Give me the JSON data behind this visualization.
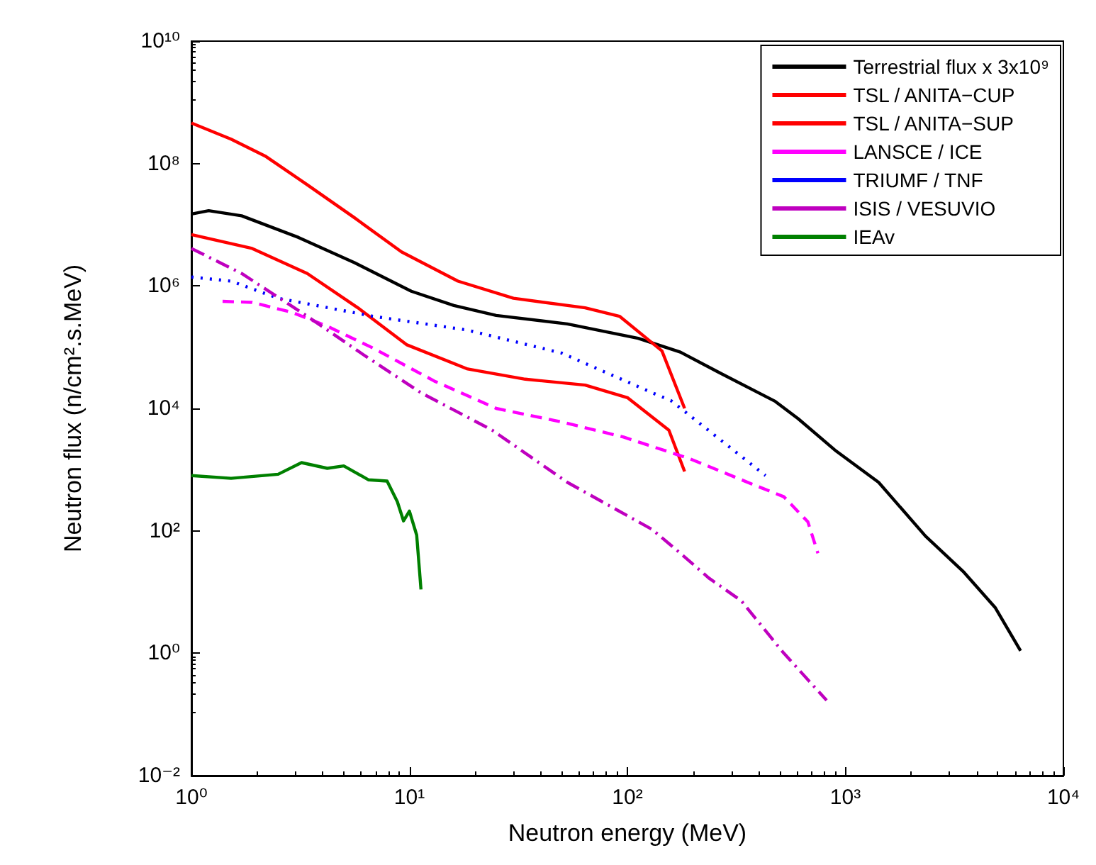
{
  "chart_data": {
    "type": "line",
    "xlabel": "Neutron energy (MeV)",
    "ylabel": "Neutron flux (n/cm².s.MeV)",
    "log": "xy",
    "grid": false,
    "legend": "top right",
    "marker": "none",
    "xlim": [
      1,
      10000
    ],
    "xticks": [
      {
        "value": 1,
        "label": "10⁰"
      },
      {
        "value": 10,
        "label": "10¹"
      },
      {
        "value": 100,
        "label": "10²"
      },
      {
        "value": 1000,
        "label": "10³"
      },
      {
        "value": 10000,
        "label": "10⁴"
      }
    ],
    "ylim": [
      0.01,
      10000000000
    ],
    "yticks": [
      {
        "value": 0.01,
        "label": "10⁻²"
      },
      {
        "value": 1,
        "label": "10⁰"
      },
      {
        "value": 100,
        "label": "10²"
      },
      {
        "value": 10000,
        "label": "10⁴"
      },
      {
        "value": 1000000,
        "label": "10⁶"
      },
      {
        "value": 100000000,
        "label": "10⁸"
      },
      {
        "value": 10000000000,
        "label": "10¹⁰"
      }
    ],
    "series": [
      {
        "name": "Terrestrial flux x 3x10⁹",
        "color": "#000000",
        "line_style": "solid",
        "x": [
          1,
          1.2,
          1.7,
          3.1,
          5.6,
          10.2,
          16,
          25,
          53,
          112,
          175,
          262,
          477,
          607,
          908,
          1420,
          2330,
          3500,
          4860,
          6360
        ],
        "values": [
          15000000,
          17000000,
          14000000,
          6200000,
          2400000,
          820000,
          480000,
          330000,
          240000,
          140000,
          83000,
          39000,
          13000,
          6800,
          2000,
          620,
          82,
          21,
          5.6,
          1.1
        ]
      },
      {
        "name": "TSL / ANITA−CUP",
        "color": "#ff0000",
        "line_style": "solid",
        "x": [
          1,
          1.52,
          2.2,
          3.4,
          5.6,
          9.2,
          16.7,
          30,
          64,
          92,
          144,
          183
        ],
        "values": [
          460000000,
          250000000,
          130000000,
          45000000,
          13000000,
          3600000,
          1200000,
          630000,
          440000,
          320000,
          87000,
          10000
        ]
      },
      {
        "name": "TSL / ANITA−SUP",
        "color": "#ff0000",
        "line_style": "solid",
        "x": [
          1,
          1.9,
          3.4,
          5.8,
          9.7,
          18.5,
          34,
          64,
          100,
          155,
          183
        ],
        "values": [
          6900000,
          4100000,
          1600000,
          440000,
          110000,
          44000,
          30000,
          24000,
          15000,
          4400,
          930
        ]
      },
      {
        "name": "LANSCE / ICE",
        "color": "#ff00ff",
        "line_style": "dashed",
        "x": [
          1.39,
          1.9,
          2.9,
          4.2,
          6.8,
          13,
          25,
          50,
          96,
          194,
          387,
          522,
          673,
          748
        ],
        "values": [
          560000,
          540000,
          370000,
          220000,
          97000,
          28000,
          10000,
          6000,
          3400,
          1500,
          550,
          360,
          140,
          43
        ]
      },
      {
        "name": "TRIUMF / TNF",
        "color": "#0000ff",
        "line_style": "dotted",
        "x": [
          1,
          1.52,
          2.5,
          6.8,
          18.5,
          50,
          130,
          158,
          430
        ],
        "values": [
          1400000,
          1200000,
          630000,
          320000,
          190000,
          80000,
          18000,
          13500,
          800
        ]
      },
      {
        "name": "ISIS / VESUVIO",
        "color": "#bf00bf",
        "line_style": "dashdot",
        "x": [
          1,
          1.7,
          3.4,
          6.2,
          11.3,
          24,
          53,
          130,
          175,
          236,
          333,
          522,
          820
        ],
        "values": [
          4100000,
          1600000,
          320000,
          74000,
          18000,
          4400,
          620,
          105,
          43,
          17,
          7.2,
          1.0,
          0.17
        ]
      },
      {
        "name": "IEAv",
        "color": "#008000",
        "line_style": "solid",
        "x": [
          1,
          1.52,
          2.5,
          3.2,
          4.2,
          5.0,
          6.5,
          7.9,
          8.8,
          9.4,
          10,
          10.8,
          11.3
        ],
        "values": [
          800,
          720,
          840,
          1300,
          1050,
          1150,
          680,
          650,
          300,
          145,
          210,
          85,
          11
        ]
      }
    ]
  }
}
